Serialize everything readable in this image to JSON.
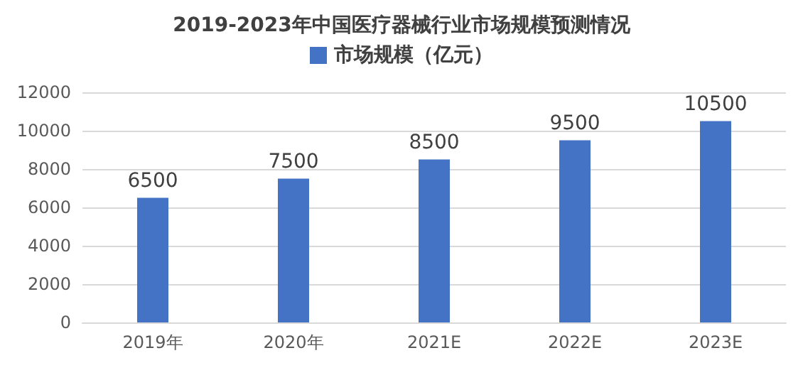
{
  "chart_data": {
    "type": "bar",
    "title": "2019-2023年中国医疗器械行业市场规模预测情况",
    "categories": [
      "2019年",
      "2020年",
      "2021E",
      "2022E",
      "2023E"
    ],
    "series": [
      {
        "name": "市场规模（亿元）",
        "color": "#4472c4",
        "values": [
          6500,
          7500,
          8500,
          9500,
          10500
        ]
      }
    ],
    "ylim": [
      0,
      12000
    ],
    "yticks": [
      0,
      2000,
      4000,
      6000,
      8000,
      10000,
      12000
    ],
    "grid": "y",
    "legend": "top",
    "data_labels": true
  }
}
